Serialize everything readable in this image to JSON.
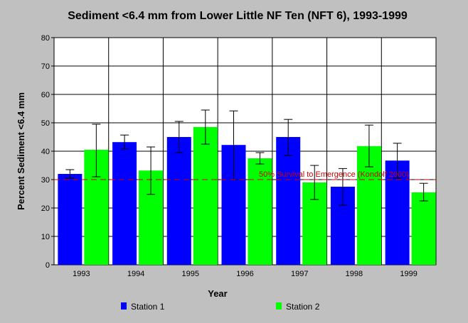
{
  "chart_data": {
    "type": "bar",
    "title": "Sediment <6.4 mm from Lower Little NF Ten (NFT 6), 1993-1999",
    "xlabel": "Year",
    "ylabel": "Percent Sediment <6.4 mm",
    "ylim": [
      0,
      80
    ],
    "y_ticks": [
      "0",
      "10",
      "20",
      "30",
      "40",
      "50",
      "60",
      "70",
      "80"
    ],
    "grid": true,
    "legend_position": "bottom",
    "categories": [
      "1993",
      "1994",
      "1995",
      "1996",
      "1997",
      "1998",
      "1999"
    ],
    "series": [
      {
        "name": "Station 1",
        "color": "#0000ff",
        "values": [
          32,
          43.2,
          45,
          42.2,
          45,
          27.5,
          36.7
        ],
        "error_low": [
          30.5,
          40.8,
          39.5,
          30,
          38.5,
          21,
          30.5
        ],
        "error_high": [
          33.5,
          45.7,
          50.5,
          54.2,
          51.2,
          33.9,
          42.8
        ]
      },
      {
        "name": "Station 2",
        "color": "#00ff00",
        "values": [
          40.5,
          33.2,
          48.5,
          37.5,
          29,
          41.8,
          25.5
        ],
        "error_low": [
          31,
          24.8,
          42.5,
          35.5,
          23,
          34.5,
          22.5
        ],
        "error_high": [
          49.5,
          41.5,
          54.5,
          39.5,
          35,
          49.2,
          28.7
        ]
      }
    ],
    "reference_line": {
      "value": 30,
      "label": "50% Survival to Emergence (Kondolf 2000)",
      "color": "#cc0000"
    }
  }
}
